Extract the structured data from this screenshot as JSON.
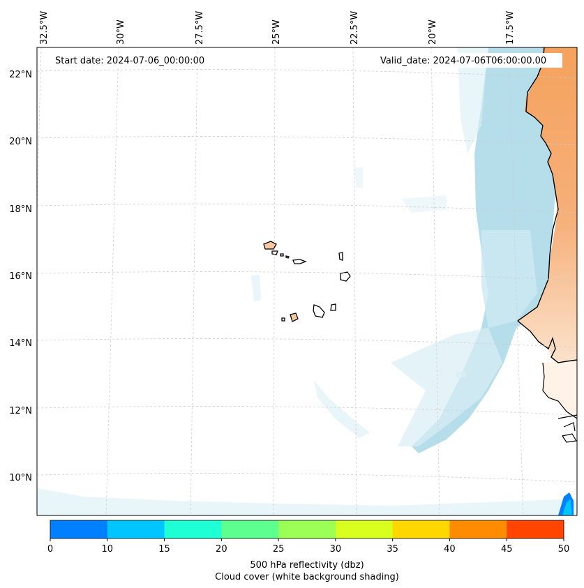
{
  "map": {
    "start_date_label": "Start date: 2024-07-06_00:00:00",
    "valid_date_label": "Valid_date: 2024-07-06T06:00:00.00",
    "lon_labels": [
      "32.5°W",
      "30°W",
      "27.5°W",
      "25°W",
      "22.5°W",
      "20°W",
      "17.5°W"
    ],
    "lat_labels": [
      "22°N",
      "20°N",
      "18°N",
      "16°N",
      "14°N",
      "12°N",
      "10°N"
    ],
    "colors": {
      "land": "#f5a25d",
      "land_light": "#f8c9a0",
      "cloud": "#a9d8e6",
      "cloud_light": "#d9eef5",
      "coast": "#000000",
      "grid": "#cccccc"
    }
  },
  "colorbar": {
    "ticks": [
      "0",
      "10",
      "15",
      "20",
      "25",
      "30",
      "35",
      "40",
      "45",
      "50"
    ],
    "bins": [
      {
        "from": 0,
        "to": 10,
        "color": "#007fff"
      },
      {
        "from": 10,
        "to": 15,
        "color": "#00c5ff"
      },
      {
        "from": 15,
        "to": 20,
        "color": "#1fffd6"
      },
      {
        "from": 20,
        "to": 25,
        "color": "#5dff8f"
      },
      {
        "from": 25,
        "to": 30,
        "color": "#9bff55"
      },
      {
        "from": 30,
        "to": 35,
        "color": "#d8ff1e"
      },
      {
        "from": 35,
        "to": 40,
        "color": "#ffd700"
      },
      {
        "from": 40,
        "to": 45,
        "color": "#ff8c00"
      },
      {
        "from": 45,
        "to": 50,
        "color": "#ff4500"
      }
    ],
    "label_line1": "500 hPa reflectivity (dbz)",
    "label_line2": "Cloud cover (white background shading)"
  }
}
